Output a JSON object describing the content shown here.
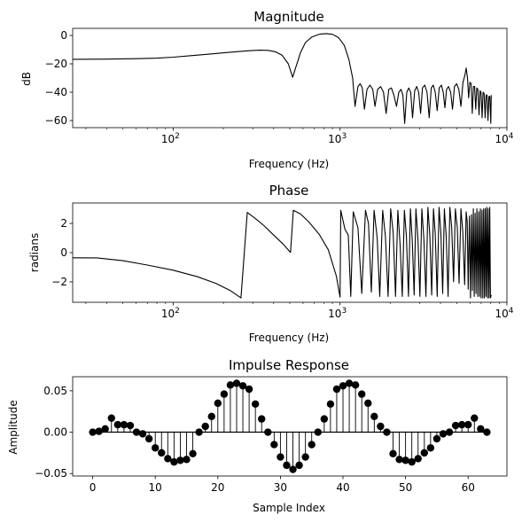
{
  "chart_data": [
    {
      "type": "line",
      "title": "Magnitude",
      "xlabel": "Frequency (Hz)",
      "ylabel": "dB",
      "xscale": "log",
      "xlim": [
        25,
        10000
      ],
      "ylim": [
        -65,
        5
      ],
      "xticks": [
        {
          "value": 100,
          "base": "10",
          "exp": "2"
        },
        {
          "value": 1000,
          "base": "10",
          "exp": "3"
        },
        {
          "value": 10000,
          "base": "10",
          "exp": "4"
        }
      ],
      "yticks": [
        0,
        -20,
        -40,
        -60
      ],
      "grid": false,
      "color": "#000000",
      "series": [
        {
          "points": [
            [
              25,
              -16.8
            ],
            [
              40,
              -16.7
            ],
            [
              60,
              -16.4
            ],
            [
              80,
              -16
            ],
            [
              100,
              -15.3
            ],
            [
              130,
              -14.2
            ],
            [
              170,
              -13
            ],
            [
              220,
              -11.8
            ],
            [
              280,
              -10.8
            ],
            [
              330,
              -10.4
            ],
            [
              370,
              -10.5
            ],
            [
              410,
              -11.5
            ],
            [
              450,
              -14
            ],
            [
              490,
              -20
            ],
            [
              520,
              -29.5
            ],
            [
              545,
              -22
            ],
            [
              580,
              -12
            ],
            [
              620,
              -5
            ],
            [
              680,
              -1
            ],
            [
              760,
              1
            ],
            [
              830,
              1.3
            ],
            [
              900,
              0.8
            ],
            [
              980,
              -1.5
            ],
            [
              1060,
              -7
            ],
            [
              1130,
              -17
            ],
            [
              1190,
              -30
            ],
            [
              1230,
              -50
            ],
            [
              1280,
              -36
            ],
            [
              1320,
              -34
            ],
            [
              1360,
              -37
            ],
            [
              1400,
              -52
            ],
            [
              1450,
              -38
            ],
            [
              1510,
              -35
            ],
            [
              1570,
              -38
            ],
            [
              1620,
              -50
            ],
            [
              1680,
              -38
            ],
            [
              1750,
              -36
            ],
            [
              1820,
              -40
            ],
            [
              1890,
              -55
            ],
            [
              1960,
              -38
            ],
            [
              2030,
              -37
            ],
            [
              2100,
              -42
            ],
            [
              2180,
              -50
            ],
            [
              2250,
              -40
            ],
            [
              2320,
              -38
            ],
            [
              2380,
              -42
            ],
            [
              2440,
              -62
            ],
            [
              2510,
              -40
            ],
            [
              2580,
              -37
            ],
            [
              2650,
              -40
            ],
            [
              2720,
              -58
            ],
            [
              2800,
              -39
            ],
            [
              2880,
              -36
            ],
            [
              2960,
              -40
            ],
            [
              3040,
              -55
            ],
            [
              3120,
              -37
            ],
            [
              3220,
              -35
            ],
            [
              3320,
              -40
            ],
            [
              3420,
              -58
            ],
            [
              3520,
              -37
            ],
            [
              3620,
              -35
            ],
            [
              3720,
              -40
            ],
            [
              3820,
              -53
            ],
            [
              3930,
              -37
            ],
            [
              4050,
              -35
            ],
            [
              4150,
              -40
            ],
            [
              4250,
              -51
            ],
            [
              4350,
              -38
            ],
            [
              4470,
              -36
            ],
            [
              4600,
              -40
            ],
            [
              4720,
              -52
            ],
            [
              4850,
              -36
            ],
            [
              5000,
              -34
            ],
            [
              5150,
              -38
            ],
            [
              5300,
              -50
            ],
            [
              5450,
              -33
            ],
            [
              5600,
              -28
            ],
            [
              5700,
              -23
            ],
            [
              5800,
              -30
            ],
            [
              5900,
              -44
            ],
            [
              6000,
              -33
            ],
            [
              6100,
              -34
            ],
            [
              6200,
              -55
            ],
            [
              6300,
              -36
            ],
            [
              6400,
              -36
            ],
            [
              6500,
              -52
            ],
            [
              6600,
              -37
            ],
            [
              6700,
              -38
            ],
            [
              6800,
              -56
            ],
            [
              6900,
              -39
            ],
            [
              7000,
              -40
            ],
            [
              7100,
              -58
            ],
            [
              7200,
              -40
            ],
            [
              7300,
              -41
            ],
            [
              7400,
              -58
            ],
            [
              7500,
              -42
            ],
            [
              7600,
              -42
            ],
            [
              7700,
              -60
            ],
            [
              7800,
              -43
            ],
            [
              7900,
              -43
            ],
            [
              8000,
              -62
            ],
            [
              8050,
              -42
            ]
          ]
        }
      ]
    },
    {
      "type": "line",
      "title": "Phase",
      "xlabel": "Frequency (Hz)",
      "ylabel": "radians",
      "xscale": "log",
      "xlim": [
        25,
        10000
      ],
      "ylim": [
        -3.4,
        3.4
      ],
      "xticks": [
        {
          "value": 100,
          "base": "10",
          "exp": "2"
        },
        {
          "value": 1000,
          "base": "10",
          "exp": "3"
        },
        {
          "value": 10000,
          "base": "10",
          "exp": "4"
        }
      ],
      "yticks": [
        2,
        0,
        -2
      ],
      "grid": false,
      "color": "#000000",
      "series": [
        {
          "points": [
            [
              25,
              -0.35
            ],
            [
              35,
              -0.36
            ],
            [
              50,
              -0.55
            ],
            [
              70,
              -0.85
            ],
            [
              100,
              -1.2
            ],
            [
              140,
              -1.65
            ],
            [
              180,
              -2.1
            ],
            [
              220,
              -2.6
            ],
            [
              255,
              -3.1
            ],
            [
              278,
              2.75
            ],
            [
              310,
              2.35
            ],
            [
              350,
              1.85
            ],
            [
              400,
              1.2
            ],
            [
              450,
              0.65
            ],
            [
              505,
              0.02
            ],
            [
              525,
              2.9
            ],
            [
              580,
              2.65
            ],
            [
              650,
              2.1
            ],
            [
              750,
              1.25
            ],
            [
              850,
              0.2
            ],
            [
              950,
              -1.6
            ],
            [
              1000,
              -3.05
            ],
            [
              1010,
              2.9
            ],
            [
              1070,
              1.6
            ],
            [
              1120,
              1.2
            ],
            [
              1160,
              -3.0
            ],
            [
              1200,
              2.8
            ],
            [
              1280,
              1.7
            ],
            [
              1350,
              -2.8
            ],
            [
              1420,
              2.9
            ],
            [
              1480,
              2.0
            ],
            [
              1540,
              -2.7
            ],
            [
              1600,
              2.9
            ],
            [
              1670,
              1.0
            ],
            [
              1730,
              -3.0
            ],
            [
              1800,
              2.9
            ],
            [
              1870,
              1.1
            ],
            [
              1940,
              -3.0
            ],
            [
              2010,
              3.0
            ],
            [
              2080,
              1.4
            ],
            [
              2150,
              -3.0
            ],
            [
              2220,
              2.9
            ],
            [
              2290,
              0.6
            ],
            [
              2360,
              -3.0
            ],
            [
              2430,
              2.9
            ],
            [
              2500,
              1.1
            ],
            [
              2570,
              -3.0
            ],
            [
              2640,
              3.0
            ],
            [
              2710,
              0.8
            ],
            [
              2780,
              -2.9
            ],
            [
              2850,
              3.0
            ],
            [
              2930,
              0.9
            ],
            [
              3010,
              -3.0
            ],
            [
              3090,
              3.0
            ],
            [
              3180,
              0.9
            ],
            [
              3270,
              -3.0
            ],
            [
              3360,
              3.1
            ],
            [
              3450,
              1.2
            ],
            [
              3540,
              -2.9
            ],
            [
              3630,
              3.0
            ],
            [
              3720,
              1.3
            ],
            [
              3820,
              -3.0
            ],
            [
              3920,
              3.1
            ],
            [
              4020,
              1.3
            ],
            [
              4120,
              -2.8
            ],
            [
              4220,
              3.0
            ],
            [
              4330,
              1.1
            ],
            [
              4440,
              -3.0
            ],
            [
              4550,
              3.1
            ],
            [
              4670,
              1.7
            ],
            [
              4790,
              -2.0
            ],
            [
              4910,
              3.0
            ],
            [
              5040,
              1.7
            ],
            [
              5170,
              -2.1
            ],
            [
              5300,
              3.0
            ],
            [
              5440,
              1.4
            ],
            [
              5580,
              -2.2
            ],
            [
              5700,
              2.8
            ],
            [
              5780,
              2.1
            ],
            [
              5860,
              -2.5
            ],
            [
              5960,
              2.5
            ],
            [
              6050,
              -3.1
            ],
            [
              6130,
              2.6
            ],
            [
              6210,
              -2.6
            ],
            [
              6290,
              3.0
            ],
            [
              6370,
              -3.0
            ],
            [
              6450,
              2.7
            ],
            [
              6530,
              -2.8
            ],
            [
              6610,
              3.0
            ],
            [
              6690,
              -3.0
            ],
            [
              6770,
              2.8
            ],
            [
              6850,
              -3.0
            ],
            [
              6930,
              3.0
            ],
            [
              7010,
              -3.1
            ],
            [
              7090,
              2.9
            ],
            [
              7170,
              -3.1
            ],
            [
              7250,
              3.0
            ],
            [
              7330,
              -3.1
            ],
            [
              7410,
              3.0
            ],
            [
              7490,
              -3.0
            ],
            [
              7570,
              3.1
            ],
            [
              7650,
              -3.1
            ],
            [
              7730,
              3.0
            ],
            [
              7810,
              -3.1
            ],
            [
              7890,
              3.1
            ],
            [
              7970,
              -3.1
            ],
            [
              8050,
              -2.9
            ]
          ]
        }
      ]
    },
    {
      "type": "stem",
      "title": "Impulse Response",
      "xlabel": "Sample Index",
      "ylabel": "Amplitude",
      "xlim": [
        -3.2,
        66.2
      ],
      "ylim": [
        -0.053,
        0.067
      ],
      "xticks": [
        0,
        10,
        20,
        30,
        40,
        50,
        60
      ],
      "ytick_values": [
        0.05,
        0,
        -0.05
      ],
      "ytick_labels": [
        "0.05",
        "0.00",
        "−0.05"
      ],
      "grid": false,
      "color": "#000000",
      "x": [
        0,
        1,
        2,
        3,
        4,
        5,
        6,
        7,
        8,
        9,
        10,
        11,
        12,
        13,
        14,
        15,
        16,
        17,
        18,
        19,
        20,
        21,
        22,
        23,
        24,
        25,
        26,
        27,
        28,
        29,
        30,
        31,
        32,
        33,
        34,
        35,
        36,
        37,
        38,
        39,
        40,
        41,
        42,
        43,
        44,
        45,
        46,
        47,
        48,
        49,
        50,
        51,
        52,
        53,
        54,
        55,
        56,
        57,
        58,
        59,
        60,
        61,
        62,
        63
      ],
      "values": [
        0.0,
        0.001,
        0.004,
        0.017,
        0.009,
        0.009,
        0.008,
        0.0,
        -0.002,
        -0.008,
        -0.019,
        -0.025,
        -0.032,
        -0.036,
        -0.034,
        -0.033,
        -0.026,
        0.0,
        0.007,
        0.019,
        0.035,
        0.046,
        0.057,
        0.059,
        0.056,
        0.052,
        0.034,
        0.016,
        0.0,
        -0.015,
        -0.03,
        -0.04,
        -0.045,
        -0.04,
        -0.03,
        -0.015,
        0.0,
        0.016,
        0.034,
        0.052,
        0.056,
        0.059,
        0.057,
        0.046,
        0.035,
        0.019,
        0.007,
        0.0,
        -0.026,
        -0.033,
        -0.034,
        -0.036,
        -0.032,
        -0.025,
        -0.019,
        -0.008,
        -0.002,
        0.0,
        0.008,
        0.009,
        0.009,
        0.017,
        0.004,
        0.0
      ]
    }
  ]
}
